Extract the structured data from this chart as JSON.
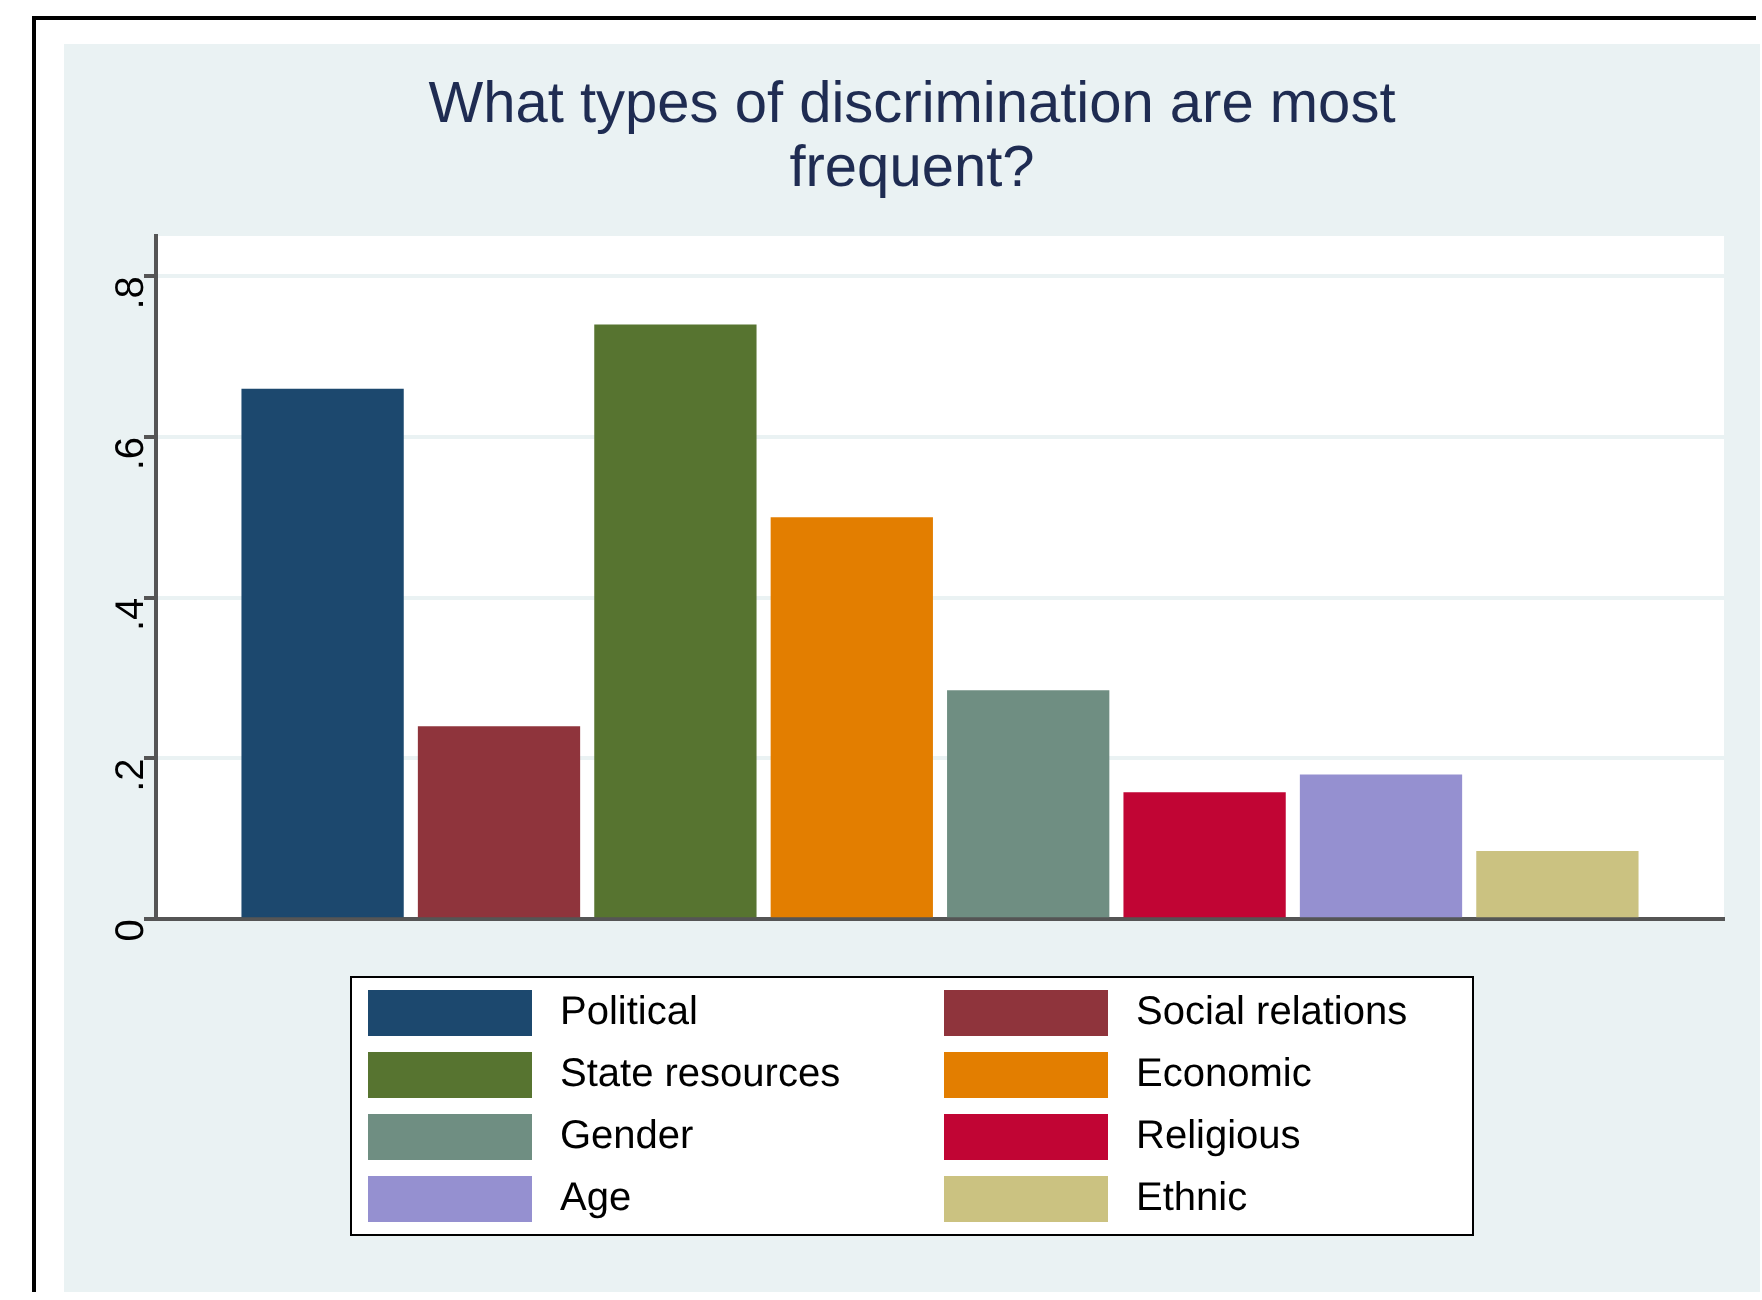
{
  "chart_data": {
    "type": "bar",
    "title": "What types of discrimination are most frequent?",
    "categories": [
      null
    ],
    "series": [
      {
        "name": "Political",
        "color": "#1c486e",
        "values": [
          0.66
        ]
      },
      {
        "name": "Social relations",
        "color": "#8f343c",
        "values": [
          0.24
        ]
      },
      {
        "name": "State resources",
        "color": "#577430",
        "values": [
          0.74
        ]
      },
      {
        "name": "Economic",
        "color": "#e37e00",
        "values": [
          0.5
        ]
      },
      {
        "name": "Gender",
        "color": "#6f8e82",
        "values": [
          0.285
        ]
      },
      {
        "name": "Religious",
        "color": "#c10534",
        "values": [
          0.158
        ]
      },
      {
        "name": "Age",
        "color": "#9590d0",
        "values": [
          0.18
        ]
      },
      {
        "name": "Ethnic",
        "color": "#cbc281",
        "values": [
          0.085
        ]
      }
    ],
    "ylim": [
      0,
      0.85
    ],
    "yticks": [
      0,
      {
        "value": 0.2,
        "label": ".2"
      },
      {
        "value": 0.4,
        "label": ".4"
      },
      {
        "value": 0.6,
        "label": ".6"
      },
      {
        "value": 0.8,
        "label": ".8"
      }
    ],
    "grid": "y",
    "legend": "bottom"
  }
}
